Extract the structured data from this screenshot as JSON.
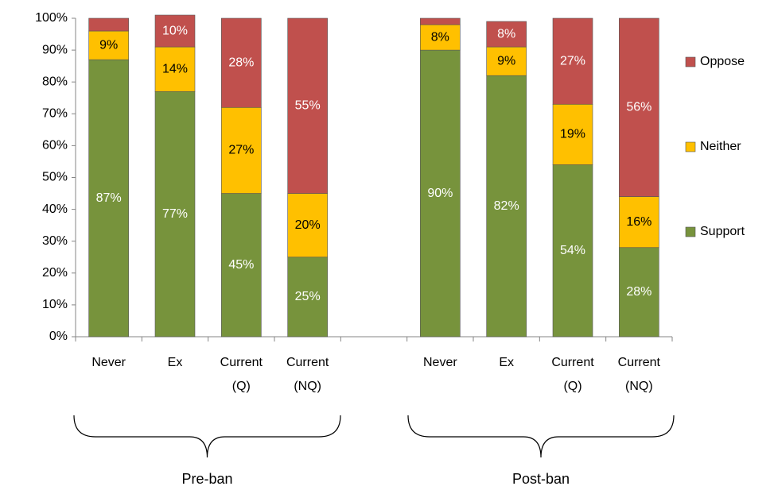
{
  "chart_data": {
    "type": "stacked_bar",
    "categories": [
      "Never",
      "Ex",
      "Current (Q)",
      "Current (NQ)",
      null,
      "Never",
      "Ex",
      "Current (Q)",
      "Current (NQ)"
    ],
    "series": [
      {
        "name": "Support",
        "color": "#77933c",
        "values": [
          87,
          77,
          45,
          25,
          null,
          90,
          82,
          54,
          28
        ],
        "value_labels": [
          "87%",
          "77%",
          "45%",
          "25%",
          null,
          "90%",
          "82%",
          "54%",
          "28%"
        ]
      },
      {
        "name": "Neither",
        "color": "#ffc000",
        "values": [
          9,
          14,
          27,
          20,
          null,
          8,
          9,
          19,
          16
        ],
        "value_labels": [
          "9%",
          "14%",
          "27%",
          "20%",
          null,
          "8%",
          "9%",
          "19%",
          "16%"
        ]
      },
      {
        "name": "Oppose",
        "color": "#c0504d",
        "values": [
          4,
          10,
          28,
          55,
          null,
          2,
          8,
          27,
          56
        ],
        "value_labels": [
          null,
          "10%",
          "28%",
          "55%",
          null,
          null,
          "8%",
          "27%",
          "56%"
        ]
      }
    ],
    "ylim": [
      0,
      100
    ],
    "yticks": [
      {
        "value": 0,
        "label": "0%"
      },
      {
        "value": 10,
        "label": "10%"
      },
      {
        "value": 20,
        "label": "20%"
      },
      {
        "value": 30,
        "label": "30%"
      },
      {
        "value": 40,
        "label": "40%"
      },
      {
        "value": 50,
        "label": "50%"
      },
      {
        "value": 60,
        "label": "60%"
      },
      {
        "value": 70,
        "label": "70%"
      },
      {
        "value": 80,
        "label": "80%"
      },
      {
        "value": 90,
        "label": "90%"
      },
      {
        "value": 100,
        "label": "100%"
      }
    ],
    "group_labels": [
      "Pre-ban",
      "Post-ban"
    ],
    "legend": "right"
  }
}
